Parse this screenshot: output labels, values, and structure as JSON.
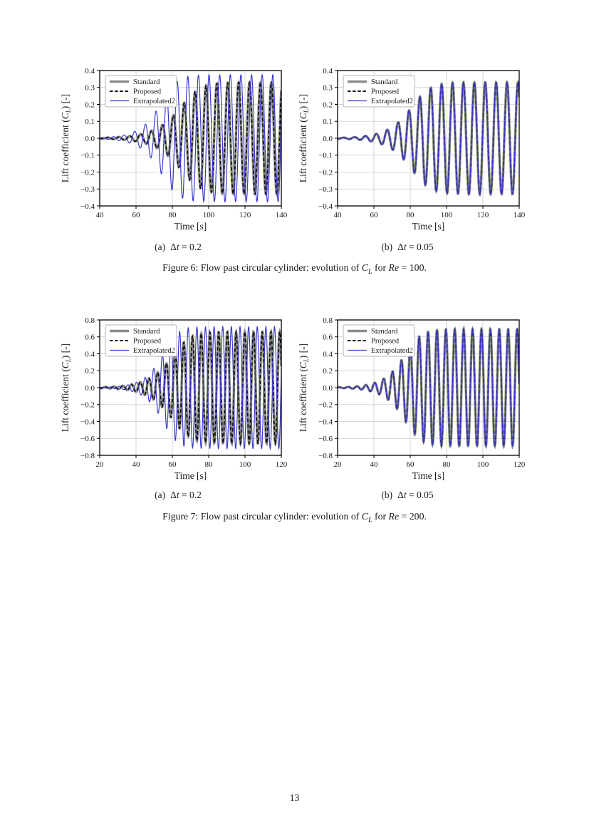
{
  "page": {
    "number": "13"
  },
  "styles": {
    "background": "#ffffff",
    "text_color": "#1a1a1a",
    "grid_color": "#cccccc",
    "frame_color": "#000000",
    "legend_border_color": "#b3b3b3",
    "standard_color": "#8c8c8c",
    "proposed_color": "#111111",
    "extrapolated2_color": "#3a3acc"
  },
  "figures": [
    {
      "label": "Figure 6",
      "subcaptions": [
        {
          "label": "(a)",
          "delta": "Δ",
          "tvar": "t",
          "value": " = 0.2"
        },
        {
          "label": "(b)",
          "delta": "Δ",
          "tvar": "t",
          "value": " = 0.05"
        }
      ],
      "caption": {
        "prefix": "Figure 6: Flow past circular cylinder: evolution of ",
        "cl_base": "C",
        "cl_sub": "L",
        "mid": " for ",
        "re_var": "Re",
        "suffix": " = 100."
      }
    },
    {
      "label": "Figure 7",
      "subcaptions": [
        {
          "label": "(a)",
          "delta": "Δ",
          "tvar": "t",
          "value": " = 0.2"
        },
        {
          "label": "(b)",
          "delta": "Δ",
          "tvar": "t",
          "value": " = 0.05"
        }
      ],
      "caption": {
        "prefix": "Figure 7: Flow past circular cylinder: evolution of ",
        "cl_base": "C",
        "cl_sub": "L",
        "mid": " for ",
        "re_var": "Re",
        "suffix": " = 200."
      }
    }
  ],
  "chart_data": [
    {
      "type": "line",
      "id": "re100-dt02",
      "figure": "Figure 6",
      "subcaption": "(a) Δt = 0.2",
      "xlabel": "Time [s]",
      "ylabel_parts": {
        "pre": "Lift coefficient (",
        "var": "C",
        "sub": "L",
        "post": ") [-]"
      },
      "xlim": [
        40,
        140
      ],
      "ylim": [
        -0.4,
        0.4
      ],
      "xticks": [
        40,
        60,
        80,
        100,
        120,
        140
      ],
      "yticks": [
        -0.4,
        -0.3,
        -0.2,
        -0.1,
        0.0,
        0.1,
        0.2,
        0.3,
        0.4
      ],
      "ytick_decimals": 1,
      "grid": true,
      "legend_position": "upper left",
      "series": [
        {
          "name": "Standard",
          "color": "#8c8c8c",
          "line_width": 3.4,
          "dash": null,
          "model": {
            "kind": "growing_oscillation",
            "saturation_amplitude": 0.33,
            "envelope_midpoint_s": 88.5,
            "growth_rate": 0.2,
            "period_s": 6.0,
            "phase_zero_s": 73.0
          }
        },
        {
          "name": "Proposed",
          "color": "#111111",
          "line_width": 1.7,
          "dash": [
            5,
            3
          ],
          "model": {
            "kind": "growing_oscillation",
            "saturation_amplitude": 0.33,
            "envelope_midpoint_s": 88.5,
            "growth_rate": 0.2,
            "period_s": 6.0,
            "phase_zero_s": 73.0
          }
        },
        {
          "name": "Extrapolated2",
          "color": "#3a3acc",
          "line_width": 1.2,
          "dash": null,
          "model": {
            "kind": "growing_oscillation",
            "saturation_amplitude": 0.375,
            "envelope_midpoint_s": 77.0,
            "growth_rate": 0.25,
            "period_s": 5.85,
            "phase_zero_s": 57.8
          }
        }
      ]
    },
    {
      "type": "line",
      "id": "re100-dt005",
      "figure": "Figure 6",
      "subcaption": "(b) Δt = 0.05",
      "xlabel": "Time [s]",
      "ylabel_parts": {
        "pre": "Lift coefficient (",
        "var": "C",
        "sub": "L",
        "post": ") [-]"
      },
      "xlim": [
        40,
        140
      ],
      "ylim": [
        -0.4,
        0.4
      ],
      "xticks": [
        40,
        60,
        80,
        100,
        120,
        140
      ],
      "yticks": [
        -0.4,
        -0.3,
        -0.2,
        -0.1,
        0.0,
        0.1,
        0.2,
        0.3,
        0.4
      ],
      "ytick_decimals": 1,
      "grid": true,
      "legend_position": "upper left",
      "series": [
        {
          "name": "Standard",
          "color": "#8c8c8c",
          "line_width": 3.4,
          "dash": null,
          "model": {
            "kind": "growing_oscillation",
            "saturation_amplitude": 0.33,
            "envelope_midpoint_s": 84.4,
            "growth_rate": 0.22,
            "period_s": 6.0,
            "phase_zero_s": 77.8
          }
        },
        {
          "name": "Proposed",
          "color": "#111111",
          "line_width": 1.7,
          "dash": [
            5,
            3
          ],
          "model": {
            "kind": "growing_oscillation",
            "saturation_amplitude": 0.33,
            "envelope_midpoint_s": 84.4,
            "growth_rate": 0.22,
            "period_s": 6.0,
            "phase_zero_s": 77.8
          }
        },
        {
          "name": "Extrapolated2",
          "color": "#3a3acc",
          "line_width": 1.2,
          "dash": null,
          "model": {
            "kind": "growing_oscillation",
            "saturation_amplitude": 0.33,
            "envelope_midpoint_s": 84.4,
            "growth_rate": 0.22,
            "period_s": 6.0,
            "phase_zero_s": 77.8
          }
        }
      ]
    },
    {
      "type": "line",
      "id": "re200-dt02",
      "figure": "Figure 7",
      "subcaption": "(a) Δt = 0.2",
      "xlabel": "Time [s]",
      "ylabel_parts": {
        "pre": "Lift coefficient (",
        "var": "C",
        "sub": "L",
        "post": ") [-]"
      },
      "xlim": [
        20,
        120
      ],
      "ylim": [
        -0.8,
        0.8
      ],
      "xticks": [
        20,
        40,
        60,
        80,
        100,
        120
      ],
      "yticks": [
        -0.8,
        -0.6,
        -0.4,
        -0.2,
        0.0,
        0.2,
        0.4,
        0.6,
        0.8
      ],
      "ytick_decimals": 1,
      "grid": true,
      "legend_position": "upper left",
      "series": [
        {
          "name": "Standard",
          "color": "#8c8c8c",
          "line_width": 3.4,
          "dash": null,
          "model": {
            "kind": "growing_oscillation",
            "saturation_amplitude": 0.66,
            "envelope_midpoint_s": 63.3,
            "growth_rate": 0.22,
            "period_s": 4.8,
            "phase_zero_s": 60.3
          }
        },
        {
          "name": "Proposed",
          "color": "#111111",
          "line_width": 1.7,
          "dash": [
            5,
            3
          ],
          "model": {
            "kind": "growing_oscillation",
            "saturation_amplitude": 0.66,
            "envelope_midpoint_s": 63.3,
            "growth_rate": 0.22,
            "period_s": 4.8,
            "phase_zero_s": 60.3
          }
        },
        {
          "name": "Extrapolated2",
          "color": "#3a3acc",
          "line_width": 1.2,
          "dash": null,
          "model": {
            "kind": "growing_oscillation",
            "saturation_amplitude": 0.72,
            "envelope_midpoint_s": 57.6,
            "growth_rate": 0.28,
            "period_s": 4.75,
            "phase_zero_s": 43.81
          }
        }
      ]
    },
    {
      "type": "line",
      "id": "re200-dt005",
      "figure": "Figure 7",
      "subcaption": "(b) Δt = 0.05",
      "xlabel": "Time [s]",
      "ylabel_parts": {
        "pre": "Lift coefficient (",
        "var": "C",
        "sub": "L",
        "post": ") [-]"
      },
      "xlim": [
        20,
        120
      ],
      "ylim": [
        -0.8,
        0.8
      ],
      "xticks": [
        20,
        40,
        60,
        80,
        100,
        120
      ],
      "yticks": [
        -0.8,
        -0.6,
        -0.4,
        -0.2,
        0.0,
        0.2,
        0.4,
        0.6,
        0.8
      ],
      "ytick_decimals": 1,
      "grid": true,
      "legend_position": "upper left",
      "series": [
        {
          "name": "Standard",
          "color": "#8c8c8c",
          "line_width": 3.4,
          "dash": null,
          "model": {
            "kind": "growing_oscillation",
            "saturation_amplitude": 0.69,
            "envelope_midpoint_s": 60.2,
            "growth_rate": 0.25,
            "period_s": 4.9,
            "phase_zero_s": 58.8
          }
        },
        {
          "name": "Proposed",
          "color": "#111111",
          "line_width": 1.7,
          "dash": [
            5,
            3
          ],
          "model": {
            "kind": "growing_oscillation",
            "saturation_amplitude": 0.69,
            "envelope_midpoint_s": 60.2,
            "growth_rate": 0.25,
            "period_s": 4.9,
            "phase_zero_s": 58.8
          }
        },
        {
          "name": "Extrapolated2",
          "color": "#3a3acc",
          "line_width": 1.2,
          "dash": null,
          "model": {
            "kind": "growing_oscillation",
            "saturation_amplitude": 0.69,
            "envelope_midpoint_s": 60.2,
            "growth_rate": 0.25,
            "period_s": 4.9,
            "phase_zero_s": 58.8
          }
        }
      ]
    }
  ]
}
